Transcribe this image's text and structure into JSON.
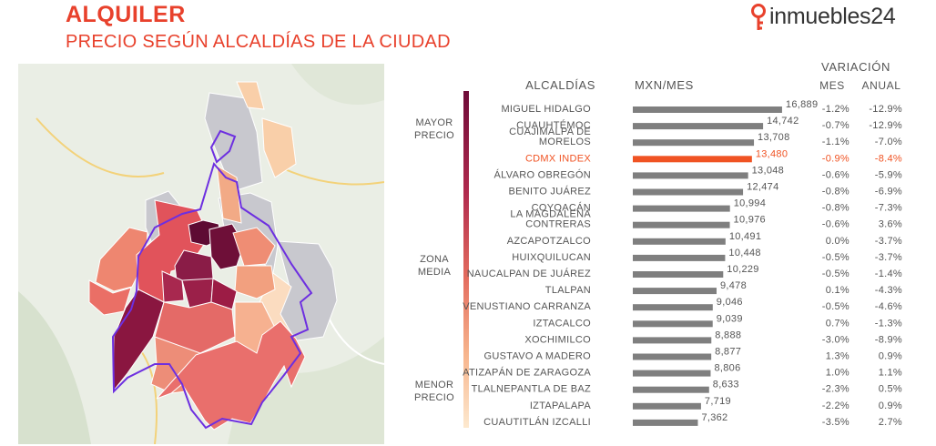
{
  "header": {
    "title": "ALQUILER",
    "subtitle": "PRECIO SEGÚN ALCALDÍAS DE LA CIUDAD"
  },
  "brand": {
    "name": "inmuebles24",
    "color": "#e8412c"
  },
  "legend": {
    "high": "MAYOR\nPRECIO",
    "mid": "ZONA\nMEDIA",
    "low": "MENOR\nPRECIO",
    "gradient": [
      "#6e0b38",
      "#b02a4e",
      "#e36b5e",
      "#f7b48c",
      "#fde9cf"
    ]
  },
  "chart_data": {
    "type": "bar",
    "orientation": "horizontal",
    "col_headers": {
      "category": "ALCALDÍAS",
      "value": "MXN/MES",
      "variation": "VARIACIÓN",
      "month": "MES",
      "year": "ANUAL"
    },
    "categories": [
      "MIGUEL HIDALGO",
      "CUAUHTÉMOC",
      "CUAJIMALPA DE\nMORELOS",
      "CDMX INDEX",
      "ÁLVARO OBREGÓN",
      "BENITO JUÁREZ",
      "COYOACÁN",
      "LA MAGDALENA\nCONTRERAS",
      "AZCAPOTZALCO",
      "HUIXQUILUCAN",
      "NAUCALPAN DE JUÁREZ",
      "TLALPAN",
      "VENUSTIANO CARRANZA",
      "IZTACALCO",
      "XOCHIMILCO",
      "GUSTAVO A MADERO",
      "ATIZAPÁN DE ZARAGOZA",
      "TLALNEPANTLA DE BAZ",
      "IZTAPALAPA",
      "CUAUTITLÁN IZCALLI"
    ],
    "values": [
      16889,
      14742,
      13708,
      13480,
      13048,
      12474,
      10994,
      10976,
      10491,
      10448,
      10229,
      9478,
      9046,
      9039,
      8888,
      8877,
      8806,
      8633,
      7719,
      7362
    ],
    "value_labels": [
      "16,889",
      "14,742",
      "13,708",
      "13,480",
      "13,048",
      "12,474",
      "10,994",
      "10,976",
      "10,491",
      "10,448",
      "10,229",
      "9,478",
      "9,046",
      "9,039",
      "8,888",
      "8,877",
      "8,806",
      "8,633",
      "7,719",
      "7,362"
    ],
    "mes": [
      "-1.2%",
      "-0.7%",
      "-1.1%",
      "-0.9%",
      "-0.6%",
      "-0.8%",
      "-0.8%",
      "-0.6%",
      "0.0%",
      "-0.5%",
      "-0.5%",
      "0.1%",
      "-0.5%",
      "0.7%",
      "-3.0%",
      "1.3%",
      "1.0%",
      "-2.3%",
      "-2.2%",
      "-3.5%"
    ],
    "anual": [
      "-12.9%",
      "-12.9%",
      "-7.0%",
      "-8.4%",
      "-5.9%",
      "-6.9%",
      "-7.3%",
      "3.6%",
      "-3.7%",
      "-3.7%",
      "-1.4%",
      "-4.3%",
      "-4.6%",
      "-1.3%",
      "-8.9%",
      "0.9%",
      "1.1%",
      "0.5%",
      "0.9%",
      "2.7%"
    ],
    "highlight_index": 3,
    "bar_color": "#7f7f7f",
    "highlight_color": "#f05323"
  }
}
